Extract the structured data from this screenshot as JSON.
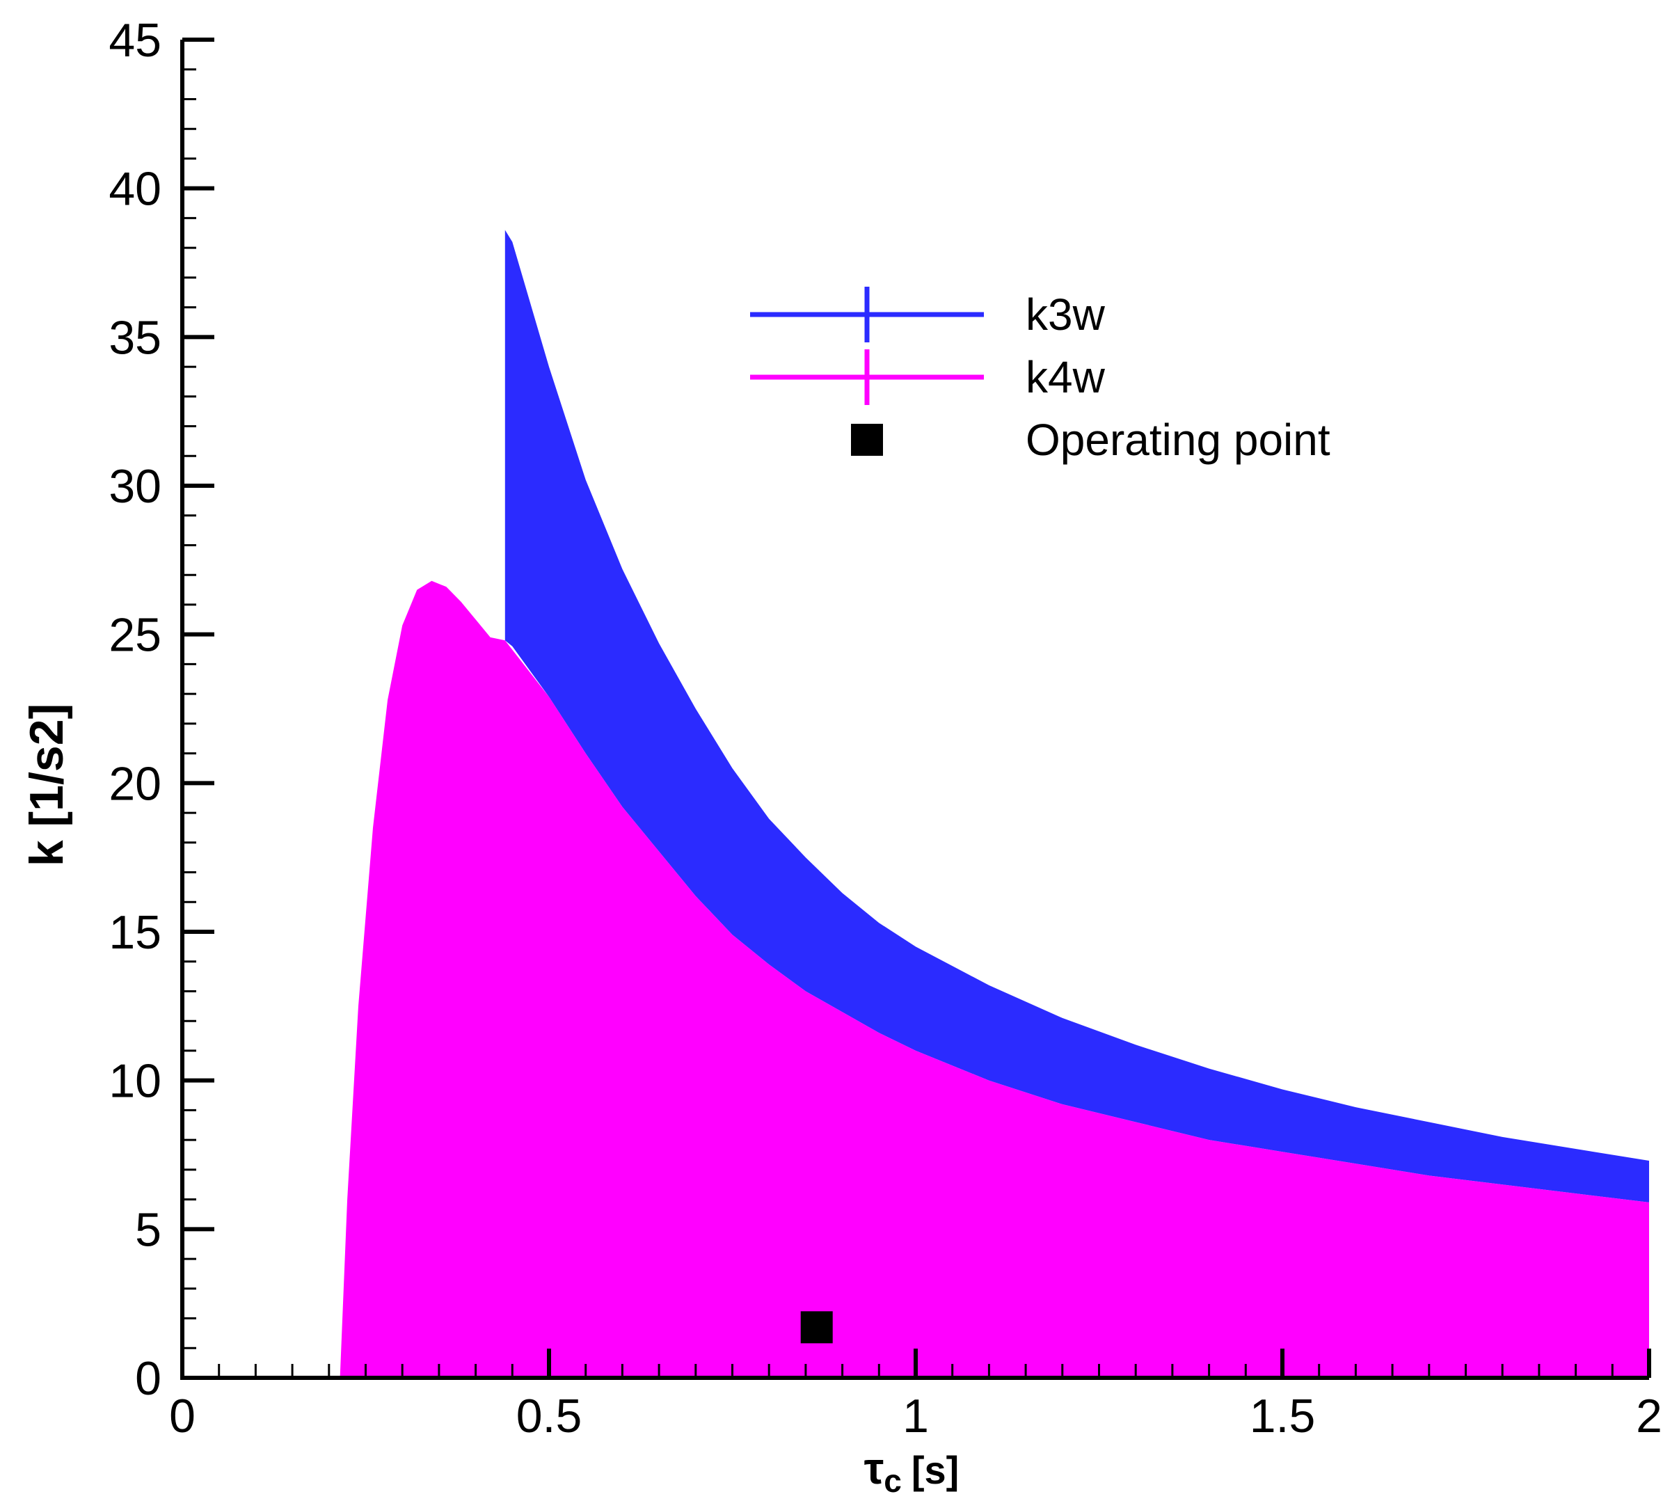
{
  "chart_data": {
    "type": "area",
    "xlabel_main": "τ",
    "xlabel_sub": "c",
    "xlabel_unit": "[s]",
    "ylabel": "k [1/s2]",
    "xlim": [
      0,
      2
    ],
    "ylim": [
      0,
      45
    ],
    "x_ticks": [
      0,
      0.5,
      1,
      1.5,
      2
    ],
    "x_tick_labels": [
      "0",
      "0.5",
      "1",
      "1.5",
      "2"
    ],
    "y_ticks": [
      0,
      5,
      10,
      15,
      20,
      25,
      30,
      35,
      40,
      45
    ],
    "y_tick_labels": [
      "0",
      "5",
      "10",
      "15",
      "20",
      "25",
      "30",
      "35",
      "40",
      "45"
    ],
    "x_minor_step": 0.05,
    "y_minor_step": 1,
    "series": [
      {
        "name": "k3w",
        "color": "#2b2bff",
        "x": [
          0.44,
          0.45,
          0.5,
          0.55,
          0.6,
          0.65,
          0.7,
          0.75,
          0.8,
          0.85,
          0.9,
          0.95,
          1.0,
          1.1,
          1.2,
          1.3,
          1.4,
          1.5,
          1.6,
          1.7,
          1.8,
          1.9,
          2.0
        ],
        "upper": [
          38.6,
          38.2,
          34.0,
          30.2,
          27.2,
          24.7,
          22.5,
          20.5,
          18.8,
          17.5,
          16.3,
          15.3,
          14.5,
          13.2,
          12.1,
          11.2,
          10.4,
          9.7,
          9.1,
          8.6,
          8.1,
          7.7,
          7.3
        ],
        "lower": [
          24.8,
          24.6,
          22.9,
          21.0,
          19.2,
          17.7,
          16.2,
          14.9,
          13.9,
          13.0,
          12.3,
          11.6,
          11.0,
          10.0,
          9.2,
          8.6,
          8.0,
          7.6,
          7.2,
          6.8,
          6.5,
          6.2,
          5.9
        ]
      },
      {
        "name": "k4w",
        "color": "#ff00ff",
        "x": [
          0.215,
          0.225,
          0.24,
          0.26,
          0.28,
          0.3,
          0.32,
          0.34,
          0.36,
          0.38,
          0.4,
          0.42,
          0.44,
          0.5,
          0.55,
          0.6,
          0.65,
          0.7,
          0.75,
          0.8,
          0.85,
          0.9,
          0.95,
          1.0,
          1.1,
          1.2,
          1.3,
          1.4,
          1.5,
          1.6,
          1.7,
          1.8,
          1.9,
          2.0
        ],
        "upper": [
          0,
          6.0,
          12.5,
          18.5,
          22.8,
          25.3,
          26.5,
          26.8,
          26.6,
          26.1,
          25.5,
          24.9,
          24.8,
          22.9,
          21.0,
          19.2,
          17.7,
          16.2,
          14.9,
          13.9,
          13.0,
          12.3,
          11.6,
          11.0,
          10.0,
          9.2,
          8.6,
          8.0,
          7.6,
          7.2,
          6.8,
          6.5,
          6.2,
          5.9
        ],
        "lower": [
          0,
          0,
          0,
          0,
          0,
          0,
          0,
          0,
          0,
          0,
          0,
          0,
          0,
          0,
          0,
          0,
          0,
          0,
          0,
          0,
          0,
          0,
          0,
          0,
          0,
          0,
          0,
          0,
          0,
          0,
          0,
          0,
          0,
          0
        ]
      }
    ],
    "points": [
      {
        "name": "Operating point",
        "x": 0.865,
        "y": 1.7,
        "color": "#000000"
      }
    ],
    "legend": {
      "placement": "top-right",
      "items": [
        {
          "label": "k3w",
          "color": "#2b2bff",
          "symbol": "line-cross"
        },
        {
          "label": "k4w",
          "color": "#ff00ff",
          "symbol": "line-cross"
        },
        {
          "label": "Operating point",
          "color": "#000000",
          "symbol": "square"
        }
      ]
    },
    "grid": false
  }
}
